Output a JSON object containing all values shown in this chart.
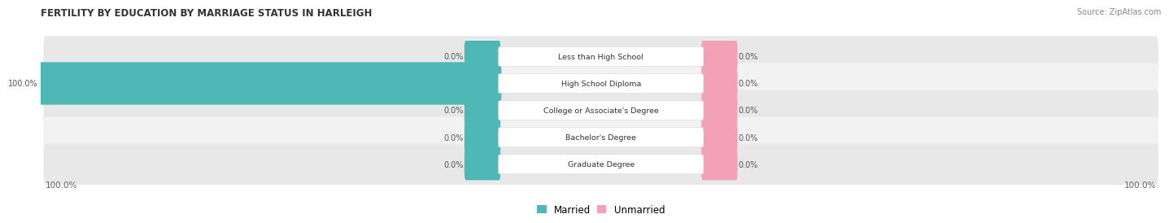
{
  "title": "FERTILITY BY EDUCATION BY MARRIAGE STATUS IN HARLEIGH",
  "source": "Source: ZipAtlas.com",
  "categories": [
    "Less than High School",
    "High School Diploma",
    "College or Associate's Degree",
    "Bachelor's Degree",
    "Graduate Degree"
  ],
  "married_values": [
    0.0,
    100.0,
    0.0,
    0.0,
    0.0
  ],
  "unmarried_values": [
    0.0,
    0.0,
    0.0,
    0.0,
    0.0
  ],
  "married_color": "#4db8b5",
  "unmarried_color": "#f4a0b5",
  "row_bg_colors": [
    "#e8e8e8",
    "#f2f2f2"
  ],
  "stub_size": 6.5,
  "figsize": [
    14.06,
    2.69
  ],
  "dpi": 100
}
